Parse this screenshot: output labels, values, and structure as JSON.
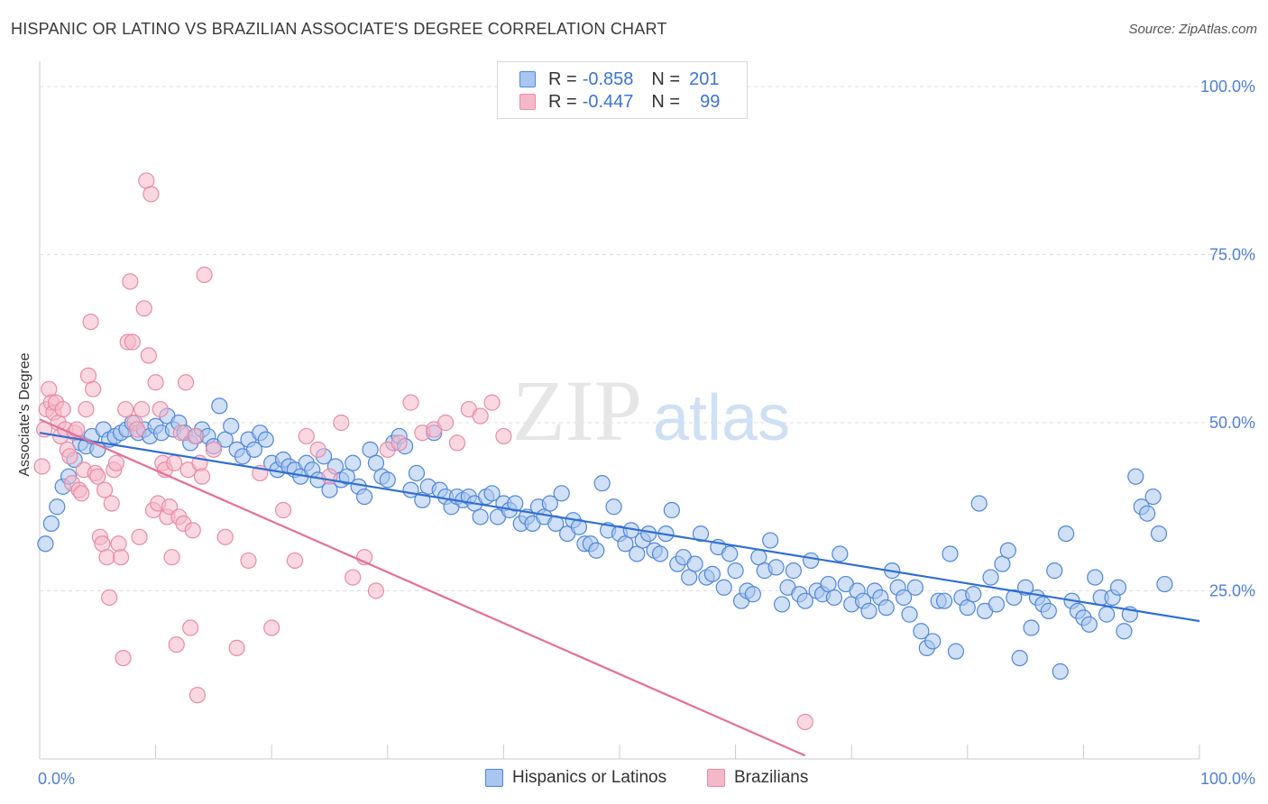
{
  "title": "HISPANIC OR LATINO VS BRAZILIAN ASSOCIATE'S DEGREE CORRELATION CHART",
  "source": "Source: ZipAtlas.com",
  "watermark": {
    "zip": "ZIP",
    "atlas": "atlas"
  },
  "legend": {
    "rows": [
      {
        "r_label": "R =",
        "r_value": "-0.858",
        "n_label": "N =",
        "n_value": "201",
        "color": "#a9c6f1"
      },
      {
        "r_label": "R =",
        "r_value": "-0.447",
        "n_label": "N =",
        "n_value": "99",
        "color": "#f5b8c9"
      }
    ]
  },
  "bottom_legend": [
    {
      "label": "Hispanics or Latinos",
      "color": "#a9c6f1"
    },
    {
      "label": "Brazilians",
      "color": "#f5b8c9"
    }
  ],
  "chart_data": {
    "type": "scatter",
    "title": "HISPANIC OR LATINO VS BRAZILIAN ASSOCIATE'S DEGREE CORRELATION CHART",
    "xlabel": "",
    "ylabel": "Associate's Degree",
    "xlim": [
      0,
      100
    ],
    "ylim": [
      0,
      100
    ],
    "x_tick_labels": [
      {
        "value": 0,
        "label": "0.0%"
      },
      {
        "value": 100,
        "label": "100.0%"
      }
    ],
    "y_tick_labels": [
      {
        "value": 25,
        "label": "25.0%"
      },
      {
        "value": 50,
        "label": "50.0%"
      },
      {
        "value": 75,
        "label": "75.0%"
      },
      {
        "value": 100,
        "label": "100.0%"
      }
    ],
    "series": [
      {
        "name": "Hispanics or Latinos",
        "color": "#4f86dc",
        "fill": "#a9c6f1",
        "trend": {
          "x": [
            0,
            100
          ],
          "y": [
            48.5,
            20.5
          ],
          "color": "#2f6fd0"
        },
        "points": [
          [
            0.5,
            32
          ],
          [
            1,
            35
          ],
          [
            1.5,
            37.5
          ],
          [
            2,
            40.5
          ],
          [
            2.5,
            42
          ],
          [
            3,
            44.5
          ],
          [
            3.5,
            47
          ],
          [
            4,
            46.5
          ],
          [
            4.5,
            48
          ],
          [
            5,
            46
          ],
          [
            5.5,
            49
          ],
          [
            6,
            47.5
          ],
          [
            6.5,
            48
          ],
          [
            7,
            48.5
          ],
          [
            7.5,
            49
          ],
          [
            8,
            50
          ],
          [
            8.5,
            48.5
          ],
          [
            9,
            49
          ],
          [
            9.5,
            48
          ],
          [
            10,
            49.5
          ],
          [
            10.5,
            48.5
          ],
          [
            11,
            51
          ],
          [
            11.5,
            49
          ],
          [
            12,
            50
          ],
          [
            12.5,
            48.5
          ],
          [
            13,
            47
          ],
          [
            13.5,
            48
          ],
          [
            14,
            49
          ],
          [
            14.5,
            48
          ],
          [
            15,
            46.5
          ],
          [
            15.5,
            52.5
          ],
          [
            16,
            47.5
          ],
          [
            16.5,
            49.5
          ],
          [
            17,
            46
          ],
          [
            17.5,
            45
          ],
          [
            18,
            47.5
          ],
          [
            18.5,
            46
          ],
          [
            19,
            48.5
          ],
          [
            19.5,
            47.5
          ],
          [
            20,
            44
          ],
          [
            20.5,
            43
          ],
          [
            21,
            44.5
          ],
          [
            21.5,
            43.5
          ],
          [
            22,
            43
          ],
          [
            22.5,
            42
          ],
          [
            23,
            44
          ],
          [
            23.5,
            43
          ],
          [
            24,
            41.5
          ],
          [
            24.5,
            45
          ],
          [
            25,
            40
          ],
          [
            25.5,
            43.5
          ],
          [
            26,
            41.5
          ],
          [
            26.5,
            42
          ],
          [
            27,
            44
          ],
          [
            27.5,
            40.5
          ],
          [
            28,
            39
          ],
          [
            28.5,
            46
          ],
          [
            29,
            44
          ],
          [
            29.5,
            42
          ],
          [
            30,
            41.5
          ],
          [
            30.5,
            47
          ],
          [
            31,
            48
          ],
          [
            31.5,
            46.5
          ],
          [
            32,
            40
          ],
          [
            32.5,
            42.5
          ],
          [
            33,
            38.5
          ],
          [
            33.5,
            40.5
          ],
          [
            34,
            48.5
          ],
          [
            34.5,
            40
          ],
          [
            35,
            39
          ],
          [
            35.5,
            37.5
          ],
          [
            36,
            39
          ],
          [
            36.5,
            38.5
          ],
          [
            37,
            39
          ],
          [
            37.5,
            38
          ],
          [
            38,
            36
          ],
          [
            38.5,
            39
          ],
          [
            39,
            39.5
          ],
          [
            39.5,
            36
          ],
          [
            40,
            38
          ],
          [
            40.5,
            37
          ],
          [
            41,
            38
          ],
          [
            41.5,
            35
          ],
          [
            42,
            36
          ],
          [
            42.5,
            35
          ],
          [
            43,
            37.5
          ],
          [
            43.5,
            36
          ],
          [
            44,
            38
          ],
          [
            44.5,
            35
          ],
          [
            45,
            39.5
          ],
          [
            45.5,
            33.5
          ],
          [
            46,
            35.5
          ],
          [
            46.5,
            34.5
          ],
          [
            47,
            32
          ],
          [
            47.5,
            32
          ],
          [
            48,
            31
          ],
          [
            48.5,
            41
          ],
          [
            49,
            34
          ],
          [
            49.5,
            37.5
          ],
          [
            50,
            33.5
          ],
          [
            50.5,
            32
          ],
          [
            51,
            34
          ],
          [
            51.5,
            30.5
          ],
          [
            52,
            32.5
          ],
          [
            52.5,
            33.5
          ],
          [
            53,
            31
          ],
          [
            53.5,
            30.5
          ],
          [
            54,
            33.5
          ],
          [
            54.5,
            37
          ],
          [
            55,
            29
          ],
          [
            55.5,
            30
          ],
          [
            56,
            27
          ],
          [
            56.5,
            29
          ],
          [
            57,
            33.5
          ],
          [
            57.5,
            27
          ],
          [
            58,
            27.5
          ],
          [
            58.5,
            31.5
          ],
          [
            59,
            25.5
          ],
          [
            59.5,
            30.5
          ],
          [
            60,
            28
          ],
          [
            60.5,
            23.5
          ],
          [
            61,
            25
          ],
          [
            61.5,
            24.5
          ],
          [
            62,
            30
          ],
          [
            62.5,
            28
          ],
          [
            63,
            32.5
          ],
          [
            63.5,
            28.5
          ],
          [
            64,
            23
          ],
          [
            64.5,
            25.5
          ],
          [
            65,
            28
          ],
          [
            65.5,
            24.5
          ],
          [
            66,
            23.5
          ],
          [
            66.5,
            29.5
          ],
          [
            67,
            25
          ],
          [
            67.5,
            24.5
          ],
          [
            68,
            26
          ],
          [
            68.5,
            24
          ],
          [
            69,
            30.5
          ],
          [
            69.5,
            26
          ],
          [
            70,
            23
          ],
          [
            70.5,
            25
          ],
          [
            71,
            23.5
          ],
          [
            71.5,
            22
          ],
          [
            72,
            25
          ],
          [
            72.5,
            24
          ],
          [
            73,
            22.5
          ],
          [
            73.5,
            28
          ],
          [
            74,
            25.5
          ],
          [
            74.5,
            24
          ],
          [
            75,
            21.5
          ],
          [
            75.5,
            25.5
          ],
          [
            76,
            19
          ],
          [
            76.5,
            16.5
          ],
          [
            77,
            17.5
          ],
          [
            77.5,
            23.5
          ],
          [
            78,
            23.5
          ],
          [
            78.5,
            30.5
          ],
          [
            79,
            16
          ],
          [
            79.5,
            24
          ],
          [
            80,
            22.5
          ],
          [
            80.5,
            24.5
          ],
          [
            81,
            38
          ],
          [
            81.5,
            22
          ],
          [
            82,
            27
          ],
          [
            82.5,
            23
          ],
          [
            83,
            29
          ],
          [
            83.5,
            31
          ],
          [
            84,
            24
          ],
          [
            84.5,
            15
          ],
          [
            85,
            25.5
          ],
          [
            85.5,
            19.5
          ],
          [
            86,
            24
          ],
          [
            86.5,
            23
          ],
          [
            87,
            22
          ],
          [
            87.5,
            28
          ],
          [
            88,
            13
          ],
          [
            88.5,
            33.5
          ],
          [
            89,
            23.5
          ],
          [
            89.5,
            22
          ],
          [
            90,
            21
          ],
          [
            90.5,
            20
          ],
          [
            91,
            27
          ],
          [
            91.5,
            24
          ],
          [
            92,
            21.5
          ],
          [
            92.5,
            24
          ],
          [
            93,
            25.5
          ],
          [
            93.5,
            19
          ],
          [
            94,
            21.5
          ],
          [
            94.5,
            42
          ],
          [
            95,
            37.5
          ],
          [
            95.5,
            36.5
          ],
          [
            96,
            39
          ],
          [
            96.5,
            33.5
          ],
          [
            97,
            26
          ]
        ]
      },
      {
        "name": "Brazilians",
        "color": "#e98aa8",
        "fill": "#f5b8c9",
        "trend": {
          "x": [
            0,
            66
          ],
          "y": [
            50.5,
            0.5
          ],
          "color": "#e56f98"
        },
        "points": [
          [
            0.2,
            43.5
          ],
          [
            0.4,
            49
          ],
          [
            0.6,
            52
          ],
          [
            0.8,
            55
          ],
          [
            1,
            53
          ],
          [
            1.2,
            51.5
          ],
          [
            1.4,
            53
          ],
          [
            1.6,
            50
          ],
          [
            1.8,
            48
          ],
          [
            2,
            52
          ],
          [
            2.2,
            49
          ],
          [
            2.4,
            46
          ],
          [
            2.6,
            45
          ],
          [
            2.8,
            41
          ],
          [
            3,
            48.5
          ],
          [
            3.2,
            49
          ],
          [
            3.4,
            40
          ],
          [
            3.6,
            39.5
          ],
          [
            3.8,
            43
          ],
          [
            4,
            52
          ],
          [
            4.2,
            57
          ],
          [
            4.4,
            65
          ],
          [
            4.6,
            55
          ],
          [
            4.8,
            42.5
          ],
          [
            5,
            42
          ],
          [
            5.2,
            33
          ],
          [
            5.4,
            32
          ],
          [
            5.6,
            40
          ],
          [
            5.8,
            30
          ],
          [
            6,
            24
          ],
          [
            6.2,
            38
          ],
          [
            6.4,
            43
          ],
          [
            6.6,
            44
          ],
          [
            6.8,
            32
          ],
          [
            7,
            30
          ],
          [
            7.2,
            15
          ],
          [
            7.4,
            52
          ],
          [
            7.6,
            62
          ],
          [
            7.8,
            71
          ],
          [
            8,
            62
          ],
          [
            8.2,
            50
          ],
          [
            8.4,
            49
          ],
          [
            8.6,
            33
          ],
          [
            8.8,
            52
          ],
          [
            9,
            67
          ],
          [
            9.2,
            86
          ],
          [
            9.4,
            60
          ],
          [
            9.6,
            84
          ],
          [
            9.8,
            37
          ],
          [
            10,
            56
          ],
          [
            10.2,
            38
          ],
          [
            10.4,
            52
          ],
          [
            10.6,
            44
          ],
          [
            10.8,
            43
          ],
          [
            11,
            36
          ],
          [
            11.2,
            37.5
          ],
          [
            11.4,
            30
          ],
          [
            11.6,
            44
          ],
          [
            11.8,
            17
          ],
          [
            12,
            36
          ],
          [
            12.2,
            48.5
          ],
          [
            12.4,
            35
          ],
          [
            12.6,
            56
          ],
          [
            12.8,
            43
          ],
          [
            13,
            19.5
          ],
          [
            13.2,
            34
          ],
          [
            13.4,
            48
          ],
          [
            13.6,
            9.5
          ],
          [
            13.8,
            44
          ],
          [
            14,
            42
          ],
          [
            14.2,
            72
          ],
          [
            15,
            46
          ],
          [
            16,
            33
          ],
          [
            17,
            16.5
          ],
          [
            18,
            29.5
          ],
          [
            19,
            42.5
          ],
          [
            20,
            19.5
          ],
          [
            21,
            37
          ],
          [
            22,
            29.5
          ],
          [
            23,
            48
          ],
          [
            24,
            46
          ],
          [
            25,
            42
          ],
          [
            26,
            50
          ],
          [
            27,
            27
          ],
          [
            28,
            30
          ],
          [
            29,
            25
          ],
          [
            30,
            46
          ],
          [
            31,
            47
          ],
          [
            32,
            53
          ],
          [
            33,
            48.5
          ],
          [
            34,
            49
          ],
          [
            35,
            50
          ],
          [
            36,
            47
          ],
          [
            37,
            52
          ],
          [
            38,
            51
          ],
          [
            39,
            53
          ],
          [
            40,
            48
          ],
          [
            66,
            5.5
          ]
        ]
      }
    ]
  }
}
